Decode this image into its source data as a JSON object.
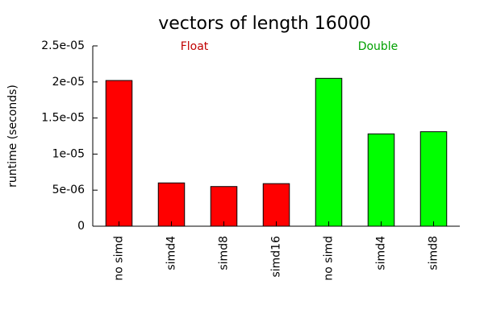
{
  "chart_data": {
    "type": "bar",
    "title": "vectors of length 16000",
    "y_label": "runtime (seconds)",
    "categories": [
      "no simd",
      "simd4",
      "simd8",
      "simd16",
      "no simd",
      "simd4",
      "simd8"
    ],
    "values": [
      2.02e-05,
      6e-06,
      5.5e-06,
      5.9e-06,
      2.05e-05,
      1.28e-05,
      1.31e-05
    ],
    "colors": [
      "#ff0000",
      "#ff0000",
      "#ff0000",
      "#ff0000",
      "#00ff00",
      "#00ff00",
      "#00ff00"
    ],
    "annotations": [
      {
        "text": "Float",
        "color": "#c00000"
      },
      {
        "text": "Double",
        "color": "#00a000"
      }
    ],
    "ylim": [
      0,
      2.5e-05
    ],
    "yticks": [
      0,
      {
        "value": 5e-06,
        "label": "5e-06"
      },
      {
        "value": 1e-05,
        "label": "1e-05"
      },
      {
        "value": 1.5e-05,
        "label": "1.5e-05"
      },
      {
        "value": 2e-05,
        "label": "2e-05"
      },
      {
        "value": 2.5e-05,
        "label": "2.5e-05"
      }
    ],
    "grid": false
  }
}
